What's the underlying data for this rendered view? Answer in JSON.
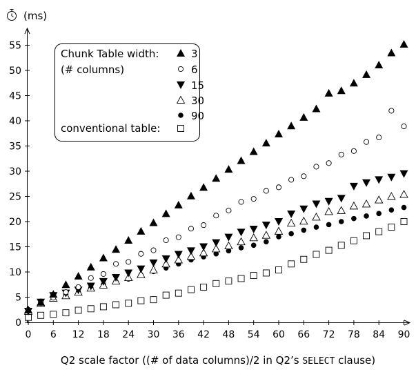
{
  "chart_data": {
    "type": "scatter",
    "ylabel": "(ms)",
    "ylabel_icon": "stopwatch-icon",
    "xlabel_parts": [
      "Q2 scale factor ((# of data columns)/2 in Q2’s ",
      "SELECT",
      " clause)"
    ],
    "xlim": [
      0,
      91
    ],
    "ylim": [
      0,
      58
    ],
    "x_ticks": [
      0,
      6,
      12,
      18,
      24,
      30,
      36,
      42,
      48,
      54,
      60,
      66,
      72,
      78,
      84,
      90
    ],
    "y_ticks": [
      0,
      5,
      10,
      15,
      20,
      25,
      30,
      35,
      40,
      45,
      50,
      55
    ],
    "legend": {
      "title_line1": "Chunk Table width:",
      "title_line2": "(# columns)",
      "conventional_label": "conventional table:",
      "placement": "top-left"
    },
    "x": [
      0,
      3,
      6,
      9,
      12,
      15,
      18,
      21,
      24,
      27,
      30,
      33,
      36,
      39,
      42,
      45,
      48,
      51,
      54,
      57,
      60,
      63,
      66,
      69,
      72,
      75,
      78,
      81,
      84,
      87,
      90
    ],
    "series": [
      {
        "name": "3",
        "marker": "triangle-up-filled",
        "values": [
          2.5,
          4.0,
          5.6,
          7.5,
          9.2,
          11.0,
          12.8,
          14.5,
          16.3,
          18.1,
          19.8,
          21.6,
          23.3,
          25.1,
          26.8,
          28.6,
          30.4,
          32.1,
          33.9,
          35.6,
          37.4,
          39.0,
          40.7,
          42.4,
          45.5,
          46.0,
          47.5,
          49.2,
          51.1,
          53.5,
          55.2
        ]
      },
      {
        "name": "6",
        "marker": "circle-open",
        "values": [
          2.5,
          4.0,
          4.9,
          6.0,
          7.0,
          8.8,
          9.6,
          11.6,
          12.0,
          13.6,
          14.3,
          16.3,
          16.9,
          18.6,
          19.3,
          21.2,
          22.2,
          23.9,
          24.5,
          26.1,
          26.8,
          28.3,
          29.0,
          30.9,
          31.6,
          33.3,
          34.0,
          35.8,
          36.7,
          42.0,
          38.9
        ]
      },
      {
        "name": "15",
        "marker": "triangle-down-filled",
        "values": [
          2.2,
          4.0,
          5.3,
          5.8,
          6.4,
          7.2,
          8.1,
          8.9,
          9.8,
          10.6,
          11.8,
          12.6,
          13.5,
          14.2,
          15.0,
          15.8,
          16.9,
          17.9,
          18.5,
          19.3,
          20.0,
          21.5,
          22.5,
          23.5,
          24.0,
          24.6,
          27.0,
          27.7,
          28.3,
          28.8,
          29.5
        ]
      },
      {
        "name": "30",
        "marker": "triangle-up-open",
        "values": [
          2.2,
          3.8,
          4.8,
          5.3,
          6.0,
          6.8,
          7.4,
          8.2,
          8.9,
          9.5,
          10.4,
          11.6,
          12.4,
          13.1,
          13.8,
          14.6,
          15.2,
          16.0,
          16.8,
          17.3,
          18.1,
          19.7,
          20.1,
          20.9,
          22.0,
          22.2,
          23.1,
          23.5,
          24.3,
          25.0,
          25.4
        ]
      },
      {
        "name": "90",
        "marker": "circle-filled",
        "values": [
          2.3,
          3.9,
          4.7,
          5.5,
          6.0,
          6.9,
          7.5,
          8.1,
          8.6,
          9.4,
          10.1,
          10.8,
          11.6,
          12.4,
          13.0,
          13.6,
          14.2,
          14.8,
          15.3,
          16.0,
          17.0,
          17.6,
          18.3,
          18.9,
          19.4,
          20.0,
          20.6,
          21.1,
          21.6,
          22.3,
          22.8
        ]
      },
      {
        "name": "conventional table",
        "marker": "square-open",
        "values": [
          1.0,
          1.4,
          1.6,
          1.9,
          2.4,
          2.7,
          3.1,
          3.5,
          3.8,
          4.3,
          4.5,
          5.4,
          5.8,
          6.5,
          7.0,
          7.7,
          8.2,
          8.7,
          9.3,
          9.8,
          10.4,
          11.6,
          12.5,
          13.5,
          14.3,
          15.3,
          16.2,
          17.2,
          18.0,
          18.9,
          20.0
        ]
      }
    ]
  }
}
